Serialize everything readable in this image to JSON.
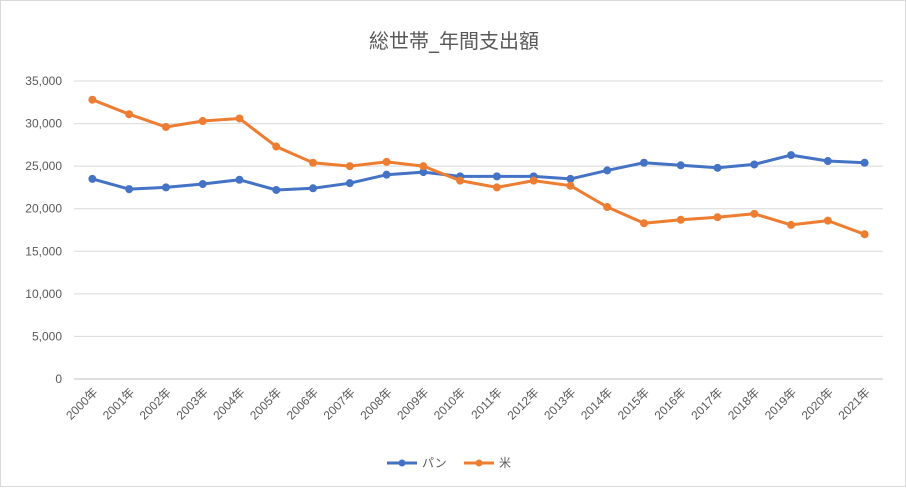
{
  "chart_data": {
    "type": "line",
    "title": "総世帯_年間支出額",
    "xlabel": "",
    "ylabel": "",
    "categories": [
      "2000年",
      "2001年",
      "2002年",
      "2003年",
      "2004年",
      "2005年",
      "2006年",
      "2007年",
      "2008年",
      "2009年",
      "2010年",
      "2011年",
      "2012年",
      "2013年",
      "2014年",
      "2015年",
      "2016年",
      "2017年",
      "2018年",
      "2019年",
      "2020年",
      "2021年"
    ],
    "ylim": [
      0,
      35000
    ],
    "yticks": [
      0,
      5000,
      10000,
      15000,
      20000,
      25000,
      30000,
      35000
    ],
    "ytick_labels": [
      "0",
      "5,000",
      "10,000",
      "15,000",
      "20,000",
      "25,000",
      "30,000",
      "35,000"
    ],
    "grid": "horizontal",
    "legend_position": "bottom",
    "series": [
      {
        "name": "パン",
        "color": "#4472c4",
        "values": [
          23500,
          22300,
          22500,
          22900,
          23400,
          22200,
          22400,
          23000,
          24000,
          24300,
          23800,
          23800,
          23800,
          23500,
          24500,
          25400,
          25100,
          24800,
          25200,
          26300,
          25600,
          25400
        ]
      },
      {
        "name": "米",
        "color": "#ed7d31",
        "values": [
          32800,
          31100,
          29600,
          30300,
          30600,
          27300,
          25400,
          25000,
          25500,
          25000,
          23300,
          22500,
          23300,
          22700,
          20200,
          18300,
          18700,
          19000,
          19400,
          18100,
          18600,
          17000
        ]
      }
    ]
  }
}
